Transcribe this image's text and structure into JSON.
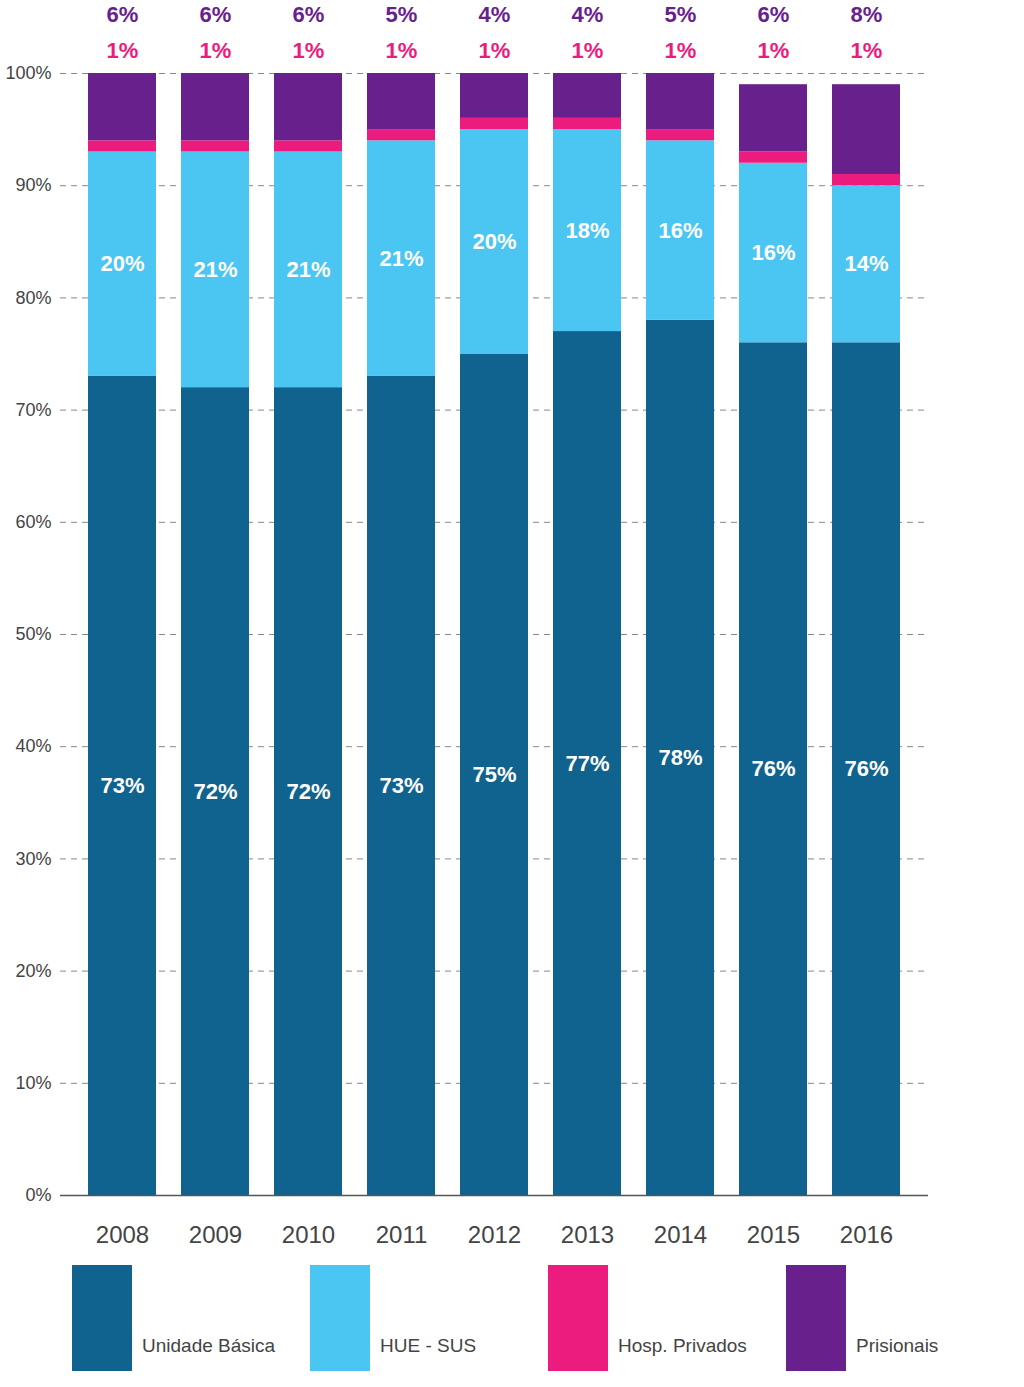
{
  "chart_data": {
    "type": "bar",
    "stacked": true,
    "data_labels": true,
    "grid": true,
    "legend": "bottom",
    "categories": [
      "2008",
      "2009",
      "2010",
      "2011",
      "2012",
      "2013",
      "2014",
      "2015",
      "2016"
    ],
    "ylim": [
      0,
      100
    ],
    "yticks": [
      {
        "value": 0,
        "label": "0%"
      },
      {
        "value": 10,
        "label": "10%"
      },
      {
        "value": 20,
        "label": "20%"
      },
      {
        "value": 30,
        "label": "30%"
      },
      {
        "value": 40,
        "label": "40%"
      },
      {
        "value": 50,
        "label": "50%"
      },
      {
        "value": 60,
        "label": "60%"
      },
      {
        "value": 70,
        "label": "70%"
      },
      {
        "value": 80,
        "label": "80%"
      },
      {
        "value": 90,
        "label": "90%"
      },
      {
        "value": 100,
        "label": "100%"
      }
    ],
    "series": [
      {
        "name": "Unidade Básica",
        "color": "#11638f",
        "values": [
          73,
          72,
          72,
          73,
          75,
          77,
          78,
          76,
          76
        ],
        "value_labels": [
          "73%",
          "72%",
          "72%",
          "73%",
          "75%",
          "77%",
          "78%",
          "76%",
          "76%"
        ]
      },
      {
        "name": "HUE - SUS",
        "color": "#4bc5f2",
        "values": [
          20,
          21,
          21,
          21,
          20,
          18,
          16,
          16,
          14
        ],
        "value_labels": [
          "20%",
          "21%",
          "21%",
          "21%",
          "20%",
          "18%",
          "16%",
          "16%",
          "14%"
        ]
      },
      {
        "name": "Hosp. Privados",
        "color": "#ec1c7e",
        "values": [
          1,
          1,
          1,
          1,
          1,
          1,
          1,
          1,
          1
        ],
        "value_labels": [
          "1%",
          "1%",
          "1%",
          "1%",
          "1%",
          "1%",
          "1%",
          "1%",
          "1%"
        ]
      },
      {
        "name": "Prisionais",
        "color": "#68218c",
        "values": [
          6,
          6,
          6,
          5,
          4,
          4,
          5,
          6,
          8
        ],
        "value_labels": [
          "6%",
          "6%",
          "6%",
          "5%",
          "4%",
          "4%",
          "5%",
          "6%",
          "8%"
        ]
      }
    ]
  }
}
